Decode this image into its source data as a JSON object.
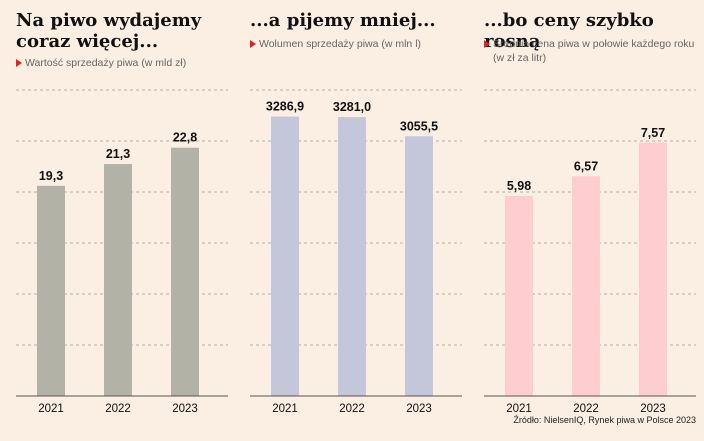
{
  "source": "Źródło: NielsenIQ, Rynek piwa w Polsce 2023",
  "chart_data": [
    {
      "type": "bar",
      "title": "Na piwo wydajemy\ncoraz więcej...",
      "subtitle": "Wartość sprzedaży piwa (w mld zł)",
      "categories": [
        "2021",
        "2022",
        "2023"
      ],
      "values": [
        19.3,
        21.3,
        22.8
      ],
      "labels": [
        "19,3",
        "21,3",
        "22,8"
      ],
      "ylim": [
        0,
        28.1
      ],
      "grid": true,
      "color": "#b3b2a7"
    },
    {
      "type": "bar",
      "title": "...a pijemy mniej...",
      "subtitle": "Wolumen sprzedaży piwa (w mln l)",
      "categories": [
        "2021",
        "2022",
        "2023"
      ],
      "values": [
        3286.9,
        3281.0,
        3055.5
      ],
      "labels": [
        "3286,9",
        "3281,0",
        "3055,5"
      ],
      "ylim": [
        0,
        3600
      ],
      "grid": true,
      "color": "#c3c7d9"
    },
    {
      "type": "bar",
      "title": "...bo ceny szybko rosną",
      "subtitle": "Średnia cena piwa w połowie każdego roku\n(w zł za litr)",
      "categories": [
        "2021",
        "2022",
        "2023"
      ],
      "values": [
        5.98,
        6.57,
        7.57
      ],
      "labels": [
        "5,98",
        "6,57",
        "7,57"
      ],
      "ylim": [
        0,
        9.15
      ],
      "grid": true,
      "color": "#fdcdcf"
    }
  ]
}
